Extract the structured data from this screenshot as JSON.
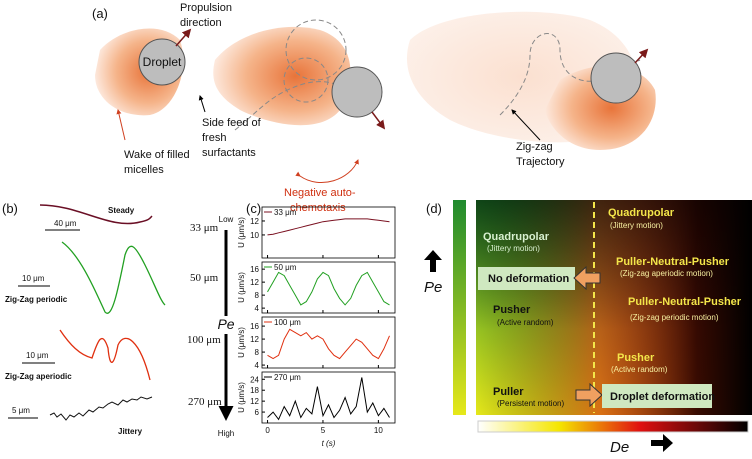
{
  "panel_a": {
    "label": "(a)",
    "propulsion": [
      "Propulsion",
      "direction"
    ],
    "droplet": "Droplet",
    "side_feed": [
      "Side feed of",
      "fresh",
      "surfactants"
    ],
    "wake": [
      "Wake of filled",
      "micelles"
    ],
    "chemotaxis": [
      "Negative auto-",
      "chemotaxis"
    ],
    "trajectory": [
      "Zig-zag",
      "Trajectory"
    ]
  },
  "panel_b": {
    "label": "(b)",
    "rows": [
      {
        "name": "Steady",
        "scale": "40 μm",
        "size": "33 μm"
      },
      {
        "name": "Zig-Zag periodic",
        "scale": "10 μm",
        "size": "50 μm"
      },
      {
        "name": "Zig-Zag aperiodic",
        "scale": "10 μm",
        "size": "100 μm"
      },
      {
        "name": "Jittery",
        "scale": "5 μm",
        "size": "270 μm"
      }
    ],
    "axis": {
      "low": "Low",
      "title": "Pe",
      "high": "High"
    }
  },
  "panel_c": {
    "label": "(c)",
    "y_label": "U (μm/s)",
    "x_label": "t (s)",
    "x": [
      0,
      0.5,
      1,
      1.5,
      2,
      2.5,
      3,
      3.5,
      4,
      4.5,
      5,
      5.5,
      6,
      6.5,
      7,
      7.5,
      8,
      8.5,
      9,
      9.5,
      10,
      10.5,
      11
    ],
    "xlim": [
      -0.5,
      11.5
    ],
    "xticks": [
      0,
      5,
      10
    ],
    "plots": [
      {
        "label": "33 μm",
        "color": "#7a1020",
        "ylim": [
          6.7,
          14
        ],
        "yticks": [
          10,
          12
        ],
        "values": [
          10,
          10.1,
          10.3,
          10.5,
          10.7,
          10.9,
          11.1,
          11.3,
          11.5,
          11.7,
          11.9,
          12,
          12.1,
          12.2,
          12.3,
          12.3,
          12.3,
          12.3,
          12.3,
          12.2,
          12.1,
          12,
          11.9
        ]
      },
      {
        "label": "50 μm",
        "color": "#22a022",
        "ylim": [
          2.5,
          18.2
        ],
        "yticks": [
          4,
          8,
          12,
          16
        ],
        "values": [
          9,
          12,
          15,
          14,
          11,
          8,
          5,
          6,
          9,
          13,
          15,
          14,
          10,
          7,
          5,
          7,
          11,
          14,
          15,
          12,
          9,
          6,
          5
        ]
      },
      {
        "label": "100 μm",
        "color": "#e03010",
        "ylim": [
          3.1,
          18.8
        ],
        "yticks": [
          4,
          8,
          12,
          16
        ],
        "values": [
          7,
          6,
          7,
          12,
          15,
          14,
          13,
          14,
          12,
          13,
          12,
          9,
          7,
          6,
          8,
          10,
          12,
          11,
          9,
          7,
          6,
          9,
          13
        ]
      },
      {
        "label": "270 μm",
        "color": "#000000",
        "ylim": [
          0,
          28
        ],
        "yticks": [
          6,
          12,
          18,
          24
        ],
        "values": [
          3,
          6,
          2,
          9,
          4,
          12,
          3,
          8,
          5,
          20,
          4,
          10,
          3,
          7,
          14,
          5,
          9,
          25,
          6,
          11,
          4,
          8,
          3
        ]
      }
    ]
  },
  "panel_d": {
    "label": "(d)",
    "pe": "Pe",
    "de": "De",
    "quad_left": [
      "Quadrupolar",
      "(Jittery motion)"
    ],
    "quad_right": [
      "Quadrupolar",
      "(Jittery motion)"
    ],
    "no_deformation": "No deformation",
    "pnp_aperiodic": [
      "Puller-Neutral-Pusher",
      "(Zig-zag aperiodic motion)"
    ],
    "pnp_periodic": [
      "Puller-Neutral-Pusher",
      "(Zig-zag periodic motion)"
    ],
    "pusher_left": [
      "Pusher",
      "(Active random)"
    ],
    "pusher_right": [
      "Pusher",
      "(Active random)"
    ],
    "puller": [
      "Puller",
      "(Persistent motion)"
    ],
    "deformation": "Droplet deformation"
  }
}
